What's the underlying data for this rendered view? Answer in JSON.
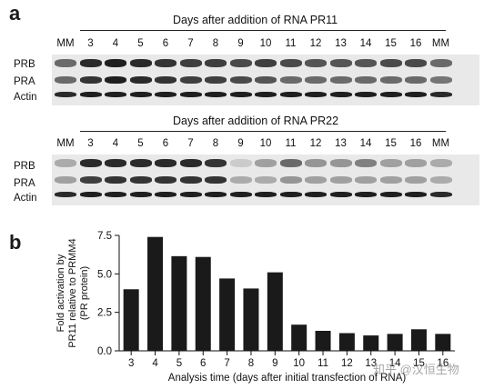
{
  "panel_a": {
    "letter": "a",
    "blot1": {
      "title": "Days after addition of RNA PR11",
      "lanes": [
        "MM",
        "3",
        "4",
        "5",
        "6",
        "7",
        "8",
        "9",
        "10",
        "11",
        "12",
        "13",
        "14",
        "15",
        "16",
        "MM"
      ],
      "rows": [
        "PRB",
        "PRA",
        "Actin"
      ]
    },
    "blot2": {
      "title": "Days after addition of RNA PR22",
      "lanes": [
        "MM",
        "3",
        "4",
        "5",
        "6",
        "7",
        "8",
        "9",
        "10",
        "11",
        "12",
        "13",
        "14",
        "15",
        "16",
        "MM"
      ],
      "rows": [
        "PRB",
        "PRA",
        "Actin"
      ]
    }
  },
  "panel_b": {
    "letter": "b",
    "chart_data": {
      "type": "bar",
      "categories": [
        "3",
        "4",
        "5",
        "6",
        "7",
        "8",
        "9",
        "10",
        "11",
        "12",
        "13",
        "14",
        "15",
        "16"
      ],
      "values": [
        4.0,
        7.4,
        6.15,
        6.1,
        4.7,
        4.05,
        5.1,
        1.7,
        1.3,
        1.15,
        1.0,
        1.1,
        1.4,
        1.1
      ],
      "ylim": [
        0,
        7.5
      ],
      "yticks": [
        "0.0",
        "2.5",
        "5.0",
        "7.5"
      ],
      "ylabel_lines": [
        "Fold activation by",
        "PR11 relative to PRMM4",
        "(PR protein)"
      ],
      "xlabel": "Analysis time (days after initial transfection of RNA)",
      "bar_color": "#1a1a1a",
      "grid": false
    }
  },
  "watermark": {
    "text": "知乎 @汉恒生物"
  }
}
